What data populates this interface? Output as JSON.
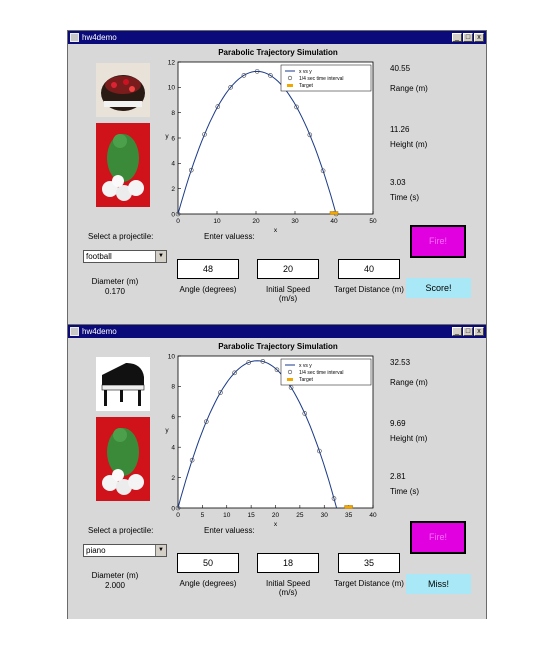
{
  "windows": [
    {
      "title": "hw4demo",
      "plot_title": "Parabolic Trajectory Simulation",
      "legend": [
        "x vs y",
        "1/4 sec time interval",
        "Target"
      ],
      "xlabel": "x",
      "ylabel": "y",
      "xticks": [
        "0",
        "10",
        "20",
        "30",
        "40",
        "50"
      ],
      "yticks": [
        "0",
        "2",
        "4",
        "6",
        "8",
        "10",
        "12"
      ],
      "range_value": "40.55",
      "range_label": "Range (m)",
      "height_value": "11.26",
      "height_label": "Height (m)",
      "time_value": "3.03",
      "time_label": "Time (s)",
      "select_label": "Select a projectile:",
      "enter_label": "Enter valuess:",
      "projectile": "football",
      "diameter_label": "Diameter (m)",
      "diameter_value": "0.170",
      "angle_value": "48",
      "angle_label": "Angle (degrees)",
      "speed_value": "20",
      "speed_label": "Initial Speed (m/s)",
      "target_value": "40",
      "target_label": "Target Distance (m)",
      "fire_label": "Fire!",
      "result_label": "Score!",
      "chart_data": {
        "type": "line",
        "xlim": [
          0,
          50
        ],
        "ylim": [
          0,
          12
        ],
        "range": 40.55,
        "peak": 11.26,
        "markers_x": [
          0,
          3.4,
          6.8,
          10.2,
          13.5,
          16.9,
          20.3,
          23.7,
          27.1,
          30.4,
          33.8,
          37.2,
          40.55
        ],
        "target_x": 40
      }
    },
    {
      "title": "hw4demo",
      "plot_title": "Parabolic Trajectory Simulation",
      "legend": [
        "x vs y",
        "1/4 sec time interval",
        "Target"
      ],
      "xlabel": "x",
      "ylabel": "y",
      "xticks": [
        "0",
        "5",
        "10",
        "15",
        "20",
        "25",
        "30",
        "35",
        "40"
      ],
      "yticks": [
        "0",
        "2",
        "4",
        "6",
        "8",
        "10"
      ],
      "range_value": "32.53",
      "range_label": "Range (m)",
      "height_value": "9.69",
      "height_label": "Height (m)",
      "time_value": "2.81",
      "time_label": "Time (s)",
      "select_label": "Select a projectile:",
      "enter_label": "Enter valuess:",
      "projectile": "piano",
      "diameter_label": "Diameter (m)",
      "diameter_value": "2.000",
      "angle_value": "50",
      "angle_label": "Angle (degrees)",
      "speed_value": "18",
      "speed_label": "Initial Speed (m/s)",
      "target_value": "35",
      "target_label": "Target Distance (m)",
      "fire_label": "Fire!",
      "result_label": "Miss!",
      "chart_data": {
        "type": "line",
        "xlim": [
          0,
          40
        ],
        "ylim": [
          0,
          10
        ],
        "range": 32.53,
        "peak": 9.69,
        "markers_x": [
          0,
          2.9,
          5.8,
          8.7,
          11.6,
          14.5,
          17.4,
          20.3,
          23.2,
          26.0,
          29.0,
          32.0
        ],
        "target_x": 35
      }
    }
  ]
}
